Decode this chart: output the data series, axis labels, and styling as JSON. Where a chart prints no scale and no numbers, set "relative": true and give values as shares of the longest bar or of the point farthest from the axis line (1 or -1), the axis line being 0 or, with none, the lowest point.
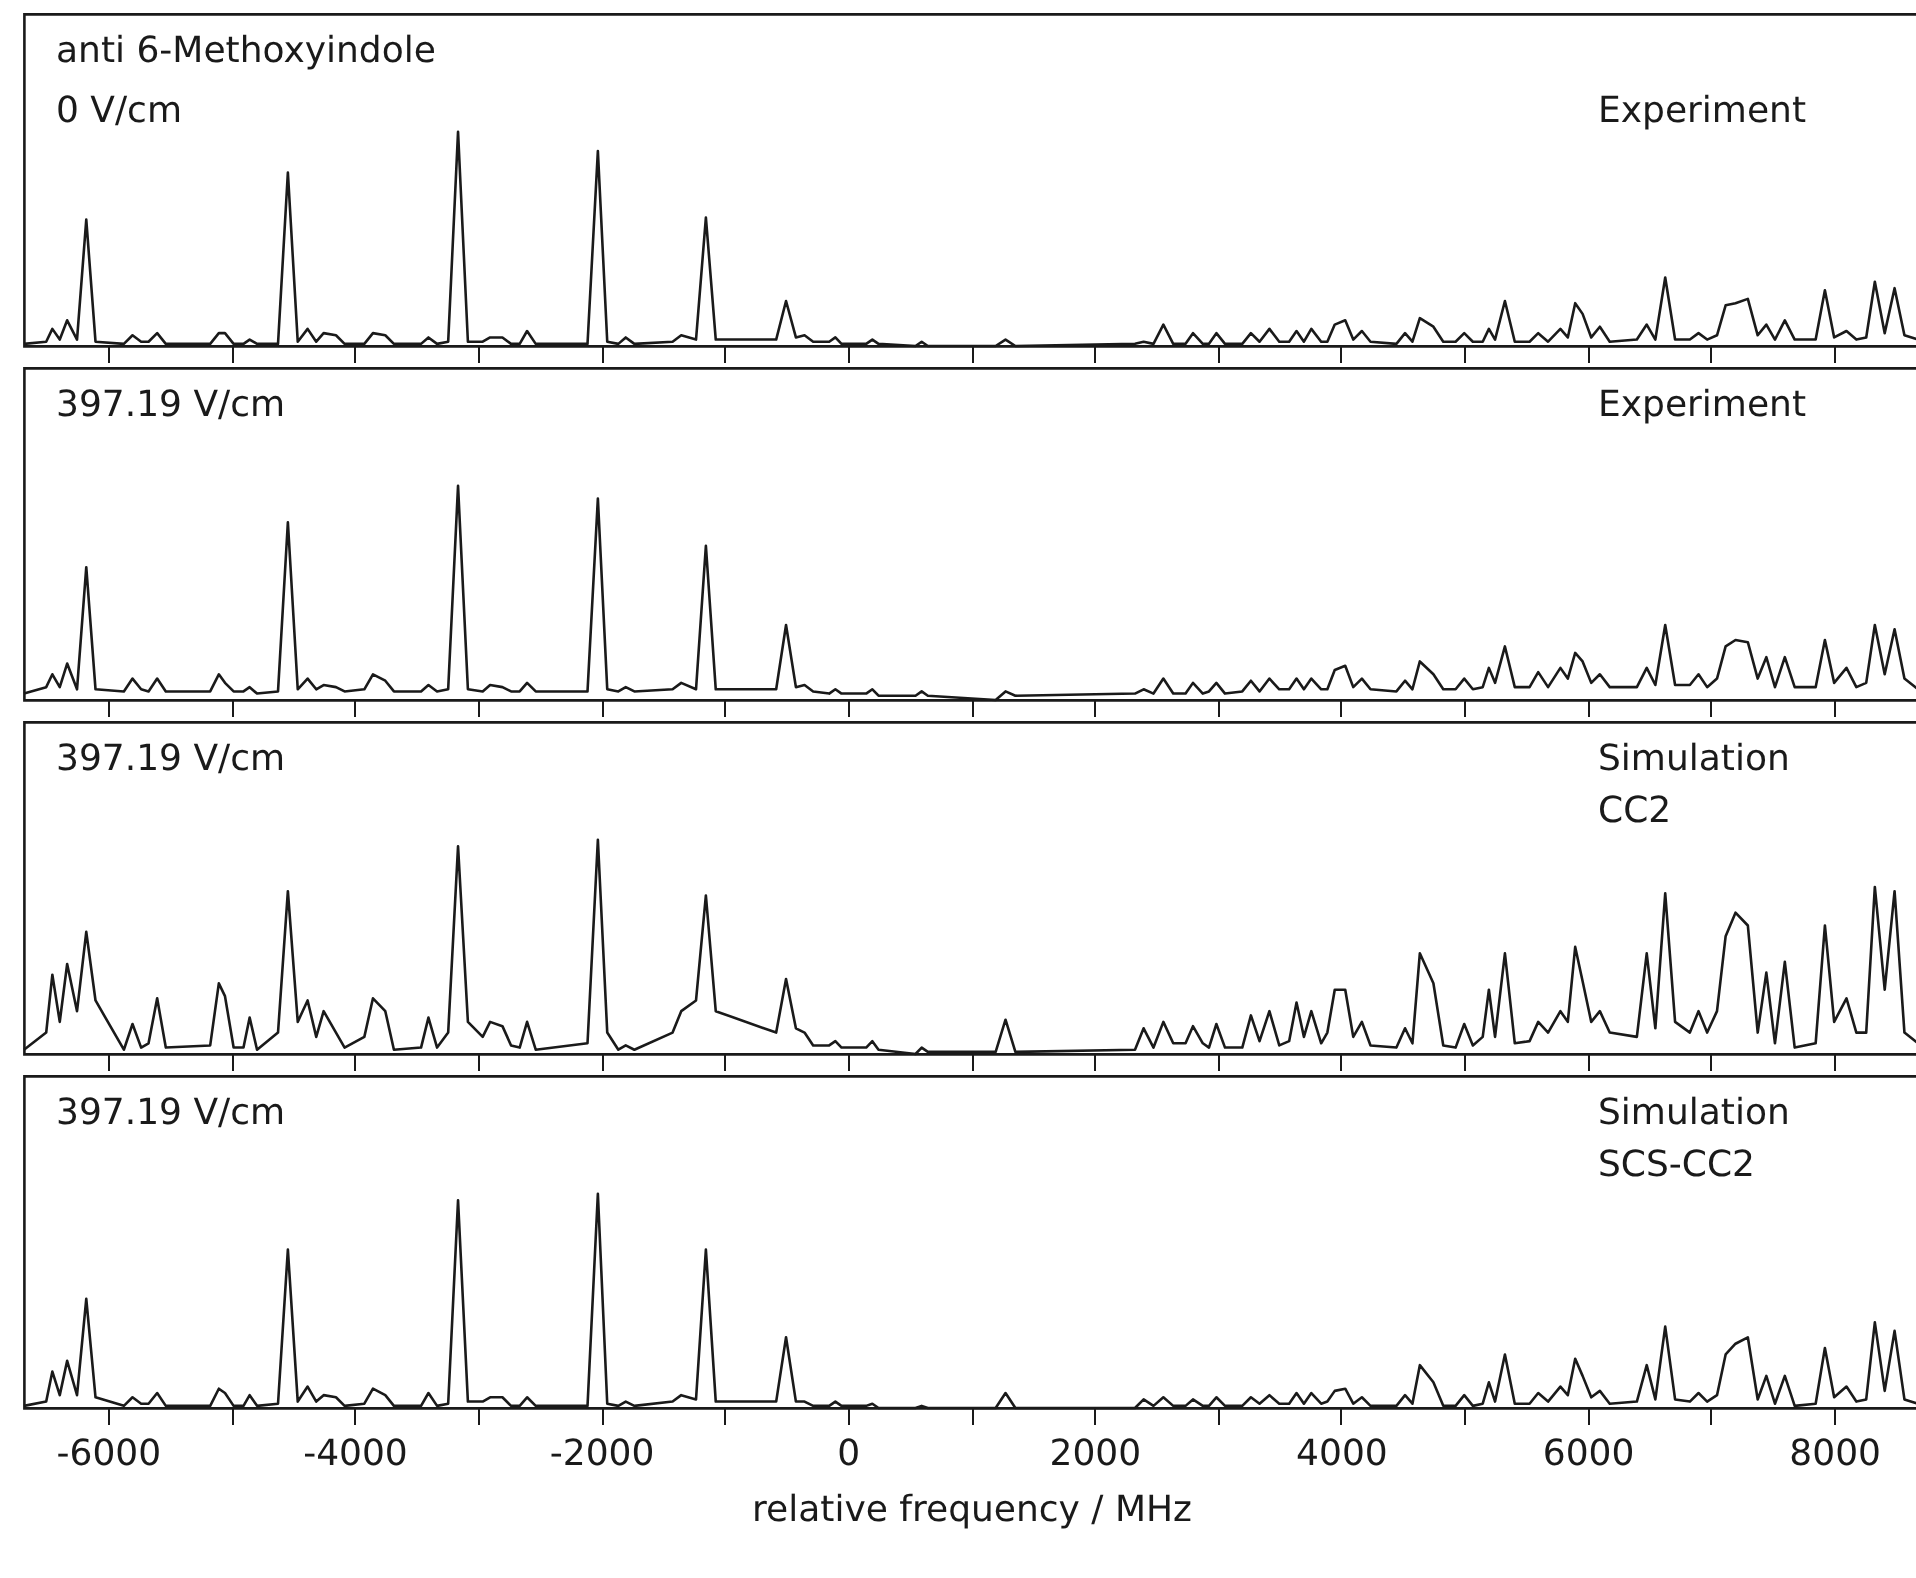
{
  "chart_data": [
    {
      "type": "line",
      "title": "anti 6-Methoxyindole",
      "annotations": [
        "0 V/cm",
        "Experiment"
      ],
      "relative": true,
      "color": "#1a1a1a",
      "xlim": [
        -6680,
        8680
      ],
      "xticks": [
        -6000,
        {
          "value": -5000,
          "label": null
        },
        -4000,
        {
          "value": -3000,
          "label": null
        },
        -2000,
        {
          "value": -1000,
          "label": null
        },
        0,
        {
          "value": 1000,
          "label": null
        },
        2000,
        {
          "value": 3000,
          "label": null
        },
        4000,
        {
          "value": 5000,
          "label": null
        },
        6000,
        {
          "value": 7000,
          "label": null
        },
        8000
      ],
      "tick_labels": false,
      "x": [
        -6680,
        -6500,
        -6450,
        -6390,
        -6330,
        -6250,
        -6175,
        -6100,
        -5870,
        -5800,
        -5730,
        -5670,
        -5600,
        -5530,
        -5170,
        -5100,
        -5050,
        -4980,
        -4900,
        -4850,
        -4790,
        -4620,
        -4540,
        -4460,
        -4380,
        -4310,
        -4250,
        -4150,
        -4080,
        -3920,
        -3850,
        -3750,
        -3680,
        -3460,
        -3400,
        -3330,
        -3240,
        -3160,
        -3080,
        -2960,
        -2900,
        -2800,
        -2730,
        -2660,
        -2600,
        -2530,
        -2110,
        -2026,
        -1950,
        -1860,
        -1800,
        -1730,
        -1420,
        -1350,
        -1230,
        -1150,
        -1070,
        -580,
        -500,
        -420,
        -350,
        -280,
        -150,
        -100,
        -50,
        150,
        200,
        250,
        550,
        600,
        650,
        1200,
        1280,
        1360,
        2330,
        2400,
        2480,
        2560,
        2640,
        2740,
        2800,
        2880,
        2930,
        2990,
        3060,
        3200,
        3270,
        3340,
        3420,
        3500,
        3580,
        3640,
        3700,
        3760,
        3840,
        3890,
        3950,
        4035,
        4100,
        4170,
        4240,
        4450,
        4520,
        4580,
        4640,
        4750,
        4830,
        4930,
        5000,
        5070,
        5150,
        5200,
        5250,
        5330,
        5410,
        5530,
        5600,
        5680,
        5780,
        5840,
        5900,
        5960,
        6030,
        6100,
        6180,
        6400,
        6480,
        6550,
        6630,
        6710,
        6830,
        6900,
        6970,
        7050,
        7120,
        7200,
        7300,
        7380,
        7450,
        7520,
        7600,
        7680,
        7850,
        7925,
        8000,
        8100,
        8180,
        8260,
        8330,
        8410,
        8490,
        8570,
        8680
      ],
      "values": [
        0.01,
        0.02,
        0.08,
        0.03,
        0.12,
        0.03,
        0.59,
        0.02,
        0.01,
        0.05,
        0.02,
        0.02,
        0.06,
        0.01,
        0.01,
        0.06,
        0.06,
        0.01,
        0.01,
        0.03,
        0.01,
        0.01,
        0.81,
        0.02,
        0.08,
        0.02,
        0.06,
        0.05,
        0.01,
        0.01,
        0.06,
        0.05,
        0.01,
        0.01,
        0.04,
        0.01,
        0.02,
        1.0,
        0.02,
        0.02,
        0.04,
        0.04,
        0.01,
        0.01,
        0.07,
        0.01,
        0.01,
        0.91,
        0.02,
        0.01,
        0.04,
        0.01,
        0.02,
        0.05,
        0.03,
        0.6,
        0.03,
        0.03,
        0.21,
        0.04,
        0.05,
        0.02,
        0.02,
        0.04,
        0.01,
        0.01,
        0.03,
        0.01,
        0.0,
        0.02,
        0.0,
        0.0,
        0.03,
        0.0,
        0.01,
        0.02,
        0.01,
        0.1,
        0.01,
        0.01,
        0.06,
        0.01,
        0.01,
        0.06,
        0.01,
        0.01,
        0.06,
        0.02,
        0.08,
        0.02,
        0.02,
        0.07,
        0.02,
        0.08,
        0.02,
        0.02,
        0.1,
        0.12,
        0.03,
        0.07,
        0.02,
        0.01,
        0.06,
        0.02,
        0.13,
        0.09,
        0.02,
        0.02,
        0.06,
        0.02,
        0.02,
        0.08,
        0.03,
        0.21,
        0.02,
        0.02,
        0.06,
        0.02,
        0.08,
        0.04,
        0.2,
        0.15,
        0.04,
        0.09,
        0.02,
        0.03,
        0.1,
        0.03,
        0.32,
        0.03,
        0.03,
        0.06,
        0.03,
        0.05,
        0.19,
        0.2,
        0.22,
        0.05,
        0.1,
        0.03,
        0.12,
        0.03,
        0.03,
        0.26,
        0.04,
        0.07,
        0.03,
        0.04,
        0.3,
        0.06,
        0.27,
        0.05,
        0.03
      ]
    },
    {
      "type": "line",
      "annotations": [
        "397.19 V/cm",
        "Experiment"
      ],
      "relative": true,
      "color": "#1a1a1a",
      "xlim": [
        -6680,
        8680
      ],
      "xticks": [
        -6000,
        {
          "value": -5000,
          "label": null
        },
        -4000,
        {
          "value": -3000,
          "label": null
        },
        -2000,
        {
          "value": -1000,
          "label": null
        },
        0,
        {
          "value": 1000,
          "label": null
        },
        2000,
        {
          "value": 3000,
          "label": null
        },
        4000,
        {
          "value": 5000,
          "label": null
        },
        6000,
        {
          "value": 7000,
          "label": null
        },
        8000
      ],
      "tick_labels": false,
      "x": [
        -6680,
        -6500,
        -6450,
        -6390,
        -6330,
        -6250,
        -6175,
        -6100,
        -5870,
        -5800,
        -5730,
        -5670,
        -5600,
        -5530,
        -5170,
        -5100,
        -5050,
        -4980,
        -4900,
        -4850,
        -4790,
        -4620,
        -4540,
        -4460,
        -4380,
        -4310,
        -4250,
        -4150,
        -4080,
        -3920,
        -3850,
        -3750,
        -3680,
        -3460,
        -3400,
        -3330,
        -3240,
        -3160,
        -3080,
        -2960,
        -2900,
        -2800,
        -2730,
        -2660,
        -2600,
        -2530,
        -2110,
        -2026,
        -1950,
        -1860,
        -1800,
        -1730,
        -1420,
        -1350,
        -1230,
        -1150,
        -1070,
        -580,
        -500,
        -420,
        -350,
        -280,
        -150,
        -100,
        -50,
        150,
        200,
        250,
        550,
        600,
        650,
        1200,
        1280,
        1360,
        2330,
        2400,
        2480,
        2560,
        2640,
        2740,
        2800,
        2880,
        2930,
        2990,
        3060,
        3200,
        3270,
        3340,
        3420,
        3500,
        3580,
        3640,
        3700,
        3760,
        3840,
        3890,
        3950,
        4035,
        4100,
        4170,
        4240,
        4450,
        4520,
        4580,
        4640,
        4750,
        4830,
        4930,
        5000,
        5070,
        5150,
        5200,
        5250,
        5330,
        5410,
        5530,
        5600,
        5680,
        5780,
        5840,
        5900,
        5960,
        6030,
        6100,
        6180,
        6400,
        6480,
        6550,
        6630,
        6710,
        6830,
        6900,
        6970,
        7050,
        7120,
        7200,
        7300,
        7380,
        7450,
        7520,
        7600,
        7680,
        7850,
        7925,
        8000,
        8100,
        8180,
        8260,
        8330,
        8410,
        8490,
        8570,
        8680
      ],
      "values": [
        0.03,
        0.06,
        0.12,
        0.06,
        0.17,
        0.05,
        0.62,
        0.05,
        0.04,
        0.1,
        0.05,
        0.04,
        0.1,
        0.04,
        0.04,
        0.12,
        0.08,
        0.04,
        0.04,
        0.06,
        0.03,
        0.04,
        0.83,
        0.05,
        0.1,
        0.05,
        0.07,
        0.06,
        0.04,
        0.05,
        0.12,
        0.09,
        0.04,
        0.04,
        0.07,
        0.04,
        0.05,
        1.0,
        0.05,
        0.04,
        0.07,
        0.06,
        0.04,
        0.04,
        0.08,
        0.04,
        0.04,
        0.94,
        0.05,
        0.04,
        0.06,
        0.04,
        0.05,
        0.08,
        0.05,
        0.72,
        0.05,
        0.05,
        0.35,
        0.06,
        0.07,
        0.04,
        0.03,
        0.05,
        0.03,
        0.03,
        0.05,
        0.02,
        0.02,
        0.04,
        0.02,
        0.0,
        0.04,
        0.02,
        0.03,
        0.05,
        0.03,
        0.1,
        0.03,
        0.03,
        0.08,
        0.03,
        0.04,
        0.08,
        0.03,
        0.04,
        0.09,
        0.04,
        0.1,
        0.05,
        0.05,
        0.1,
        0.05,
        0.1,
        0.05,
        0.05,
        0.14,
        0.16,
        0.06,
        0.1,
        0.05,
        0.04,
        0.09,
        0.05,
        0.18,
        0.12,
        0.05,
        0.05,
        0.1,
        0.05,
        0.06,
        0.15,
        0.08,
        0.25,
        0.06,
        0.06,
        0.13,
        0.06,
        0.15,
        0.1,
        0.22,
        0.18,
        0.08,
        0.12,
        0.06,
        0.06,
        0.15,
        0.07,
        0.35,
        0.07,
        0.07,
        0.12,
        0.06,
        0.1,
        0.25,
        0.28,
        0.27,
        0.1,
        0.2,
        0.06,
        0.2,
        0.06,
        0.06,
        0.28,
        0.08,
        0.15,
        0.06,
        0.08,
        0.35,
        0.12,
        0.33,
        0.1,
        0.05
      ]
    },
    {
      "type": "line",
      "annotations": [
        "397.19 V/cm",
        "Simulation\nCC2"
      ],
      "relative": true,
      "color": "#1a1a1a",
      "xlim": [
        -6680,
        8680
      ],
      "xticks": [
        -6000,
        {
          "value": -5000,
          "label": null
        },
        -4000,
        {
          "value": -3000,
          "label": null
        },
        -2000,
        {
          "value": -1000,
          "label": null
        },
        0,
        {
          "value": 1000,
          "label": null
        },
        2000,
        {
          "value": 3000,
          "label": null
        },
        4000,
        {
          "value": 5000,
          "label": null
        },
        6000,
        {
          "value": 7000,
          "label": null
        },
        8000
      ],
      "tick_labels": false,
      "x": [
        -6680,
        -6500,
        -6450,
        -6390,
        -6330,
        -6250,
        -6175,
        -6100,
        -5870,
        -5800,
        -5730,
        -5670,
        -5600,
        -5530,
        -5170,
        -5100,
        -5050,
        -4980,
        -4900,
        -4850,
        -4790,
        -4620,
        -4540,
        -4460,
        -4380,
        -4310,
        -4250,
        -4150,
        -4080,
        -3920,
        -3850,
        -3750,
        -3680,
        -3460,
        -3400,
        -3330,
        -3240,
        -3160,
        -3080,
        -2960,
        -2900,
        -2800,
        -2730,
        -2660,
        -2600,
        -2530,
        -2110,
        -2026,
        -1950,
        -1860,
        -1800,
        -1730,
        -1420,
        -1350,
        -1230,
        -1150,
        -1070,
        -580,
        -500,
        -420,
        -350,
        -280,
        -150,
        -100,
        -50,
        150,
        200,
        250,
        550,
        600,
        650,
        1200,
        1280,
        1360,
        2330,
        2400,
        2480,
        2560,
        2640,
        2740,
        2800,
        2880,
        2930,
        2990,
        3060,
        3200,
        3270,
        3340,
        3420,
        3500,
        3580,
        3640,
        3700,
        3760,
        3840,
        3890,
        3950,
        4035,
        4100,
        4170,
        4240,
        4450,
        4520,
        4580,
        4640,
        4750,
        4830,
        4930,
        5000,
        5070,
        5150,
        5200,
        5250,
        5330,
        5410,
        5530,
        5600,
        5680,
        5780,
        5840,
        5900,
        5960,
        6030,
        6100,
        6180,
        6400,
        6480,
        6550,
        6630,
        6710,
        6830,
        6900,
        6970,
        7050,
        7120,
        7200,
        7300,
        7380,
        7450,
        7520,
        7600,
        7680,
        7850,
        7925,
        8000,
        8100,
        8180,
        8260,
        8330,
        8410,
        8490,
        8570,
        8680
      ],
      "values": [
        0.02,
        0.1,
        0.37,
        0.15,
        0.42,
        0.2,
        0.57,
        0.25,
        0.02,
        0.14,
        0.03,
        0.05,
        0.26,
        0.03,
        0.04,
        0.33,
        0.27,
        0.03,
        0.03,
        0.17,
        0.02,
        0.1,
        0.76,
        0.15,
        0.25,
        0.08,
        0.2,
        0.1,
        0.03,
        0.08,
        0.26,
        0.2,
        0.02,
        0.03,
        0.17,
        0.03,
        0.1,
        0.97,
        0.15,
        0.08,
        0.15,
        0.13,
        0.04,
        0.03,
        0.15,
        0.02,
        0.05,
        1.0,
        0.1,
        0.02,
        0.04,
        0.02,
        0.1,
        0.2,
        0.25,
        0.74,
        0.2,
        0.1,
        0.35,
        0.12,
        0.1,
        0.04,
        0.04,
        0.06,
        0.03,
        0.03,
        0.06,
        0.02,
        0.0,
        0.03,
        0.01,
        0.01,
        0.16,
        0.01,
        0.02,
        0.12,
        0.03,
        0.15,
        0.05,
        0.05,
        0.13,
        0.05,
        0.03,
        0.14,
        0.03,
        0.03,
        0.18,
        0.06,
        0.2,
        0.04,
        0.06,
        0.24,
        0.08,
        0.2,
        0.05,
        0.1,
        0.3,
        0.3,
        0.08,
        0.15,
        0.04,
        0.03,
        0.12,
        0.05,
        0.47,
        0.33,
        0.04,
        0.03,
        0.14,
        0.04,
        0.08,
        0.3,
        0.08,
        0.47,
        0.05,
        0.06,
        0.15,
        0.1,
        0.2,
        0.15,
        0.5,
        0.34,
        0.15,
        0.2,
        0.1,
        0.08,
        0.47,
        0.12,
        0.75,
        0.15,
        0.1,
        0.2,
        0.1,
        0.2,
        0.55,
        0.66,
        0.6,
        0.1,
        0.38,
        0.05,
        0.43,
        0.03,
        0.05,
        0.6,
        0.15,
        0.26,
        0.1,
        0.1,
        0.78,
        0.3,
        0.76,
        0.1,
        0.05
      ]
    },
    {
      "type": "line",
      "annotations": [
        "397.19 V/cm",
        "Simulation\nSCS-CC2"
      ],
      "relative": true,
      "color": "#1a1a1a",
      "xlabel": "relative frequency / MHz",
      "xlim": [
        -6680,
        8680
      ],
      "xticks": [
        -6000,
        {
          "value": -5000,
          "label": null
        },
        -4000,
        {
          "value": -3000,
          "label": null
        },
        -2000,
        {
          "value": -1000,
          "label": null
        },
        0,
        {
          "value": 1000,
          "label": null
        },
        2000,
        {
          "value": 3000,
          "label": null
        },
        4000,
        {
          "value": 5000,
          "label": null
        },
        6000,
        {
          "value": 7000,
          "label": null
        },
        8000
      ],
      "tick_labels": "x",
      "x": [
        -6680,
        -6500,
        -6450,
        -6390,
        -6330,
        -6250,
        -6175,
        -6100,
        -5870,
        -5800,
        -5730,
        -5670,
        -5600,
        -5530,
        -5170,
        -5100,
        -5050,
        -4980,
        -4900,
        -4850,
        -4790,
        -4620,
        -4540,
        -4460,
        -4380,
        -4310,
        -4250,
        -4150,
        -4080,
        -3920,
        -3850,
        -3750,
        -3680,
        -3460,
        -3400,
        -3330,
        -3240,
        -3160,
        -3080,
        -2960,
        -2900,
        -2800,
        -2730,
        -2660,
        -2600,
        -2530,
        -2110,
        -2026,
        -1950,
        -1860,
        -1800,
        -1730,
        -1420,
        -1350,
        -1230,
        -1150,
        -1070,
        -580,
        -500,
        -420,
        -350,
        -280,
        -150,
        -100,
        -50,
        150,
        200,
        250,
        550,
        600,
        650,
        1200,
        1280,
        1360,
        2330,
        2400,
        2480,
        2560,
        2640,
        2740,
        2800,
        2880,
        2930,
        2990,
        3060,
        3200,
        3270,
        3340,
        3420,
        3500,
        3580,
        3640,
        3700,
        3760,
        3840,
        3890,
        3950,
        4035,
        4100,
        4170,
        4240,
        4450,
        4520,
        4580,
        4640,
        4750,
        4830,
        4930,
        5000,
        5070,
        5150,
        5200,
        5250,
        5330,
        5410,
        5530,
        5600,
        5680,
        5780,
        5840,
        5900,
        5960,
        6030,
        6100,
        6180,
        6400,
        6480,
        6550,
        6630,
        6710,
        6830,
        6900,
        6970,
        7050,
        7120,
        7200,
        7300,
        7380,
        7450,
        7520,
        7600,
        7680,
        7850,
        7925,
        8000,
        8100,
        8180,
        8260,
        8330,
        8410,
        8490,
        8570,
        8680
      ],
      "values": [
        0.01,
        0.03,
        0.17,
        0.06,
        0.22,
        0.06,
        0.51,
        0.05,
        0.01,
        0.05,
        0.02,
        0.02,
        0.07,
        0.01,
        0.01,
        0.09,
        0.07,
        0.01,
        0.01,
        0.06,
        0.01,
        0.02,
        0.74,
        0.03,
        0.1,
        0.03,
        0.06,
        0.05,
        0.01,
        0.02,
        0.09,
        0.06,
        0.01,
        0.01,
        0.07,
        0.01,
        0.02,
        0.97,
        0.03,
        0.03,
        0.05,
        0.05,
        0.01,
        0.01,
        0.05,
        0.01,
        0.01,
        1.0,
        0.02,
        0.01,
        0.03,
        0.01,
        0.03,
        0.06,
        0.04,
        0.74,
        0.03,
        0.03,
        0.33,
        0.03,
        0.03,
        0.01,
        0.01,
        0.03,
        0.01,
        0.01,
        0.02,
        0.0,
        0.0,
        0.01,
        0.0,
        0.0,
        0.07,
        0.0,
        0.0,
        0.04,
        0.01,
        0.05,
        0.01,
        0.01,
        0.04,
        0.01,
        0.01,
        0.05,
        0.01,
        0.01,
        0.05,
        0.02,
        0.06,
        0.02,
        0.02,
        0.07,
        0.02,
        0.07,
        0.02,
        0.03,
        0.08,
        0.09,
        0.02,
        0.05,
        0.01,
        0.01,
        0.06,
        0.02,
        0.2,
        0.12,
        0.01,
        0.01,
        0.06,
        0.01,
        0.02,
        0.12,
        0.03,
        0.25,
        0.02,
        0.02,
        0.07,
        0.03,
        0.1,
        0.06,
        0.23,
        0.15,
        0.05,
        0.08,
        0.02,
        0.03,
        0.2,
        0.04,
        0.38,
        0.04,
        0.03,
        0.07,
        0.03,
        0.06,
        0.25,
        0.3,
        0.33,
        0.04,
        0.15,
        0.02,
        0.15,
        0.01,
        0.02,
        0.28,
        0.05,
        0.1,
        0.03,
        0.04,
        0.4,
        0.08,
        0.36,
        0.04,
        0.02
      ]
    }
  ]
}
